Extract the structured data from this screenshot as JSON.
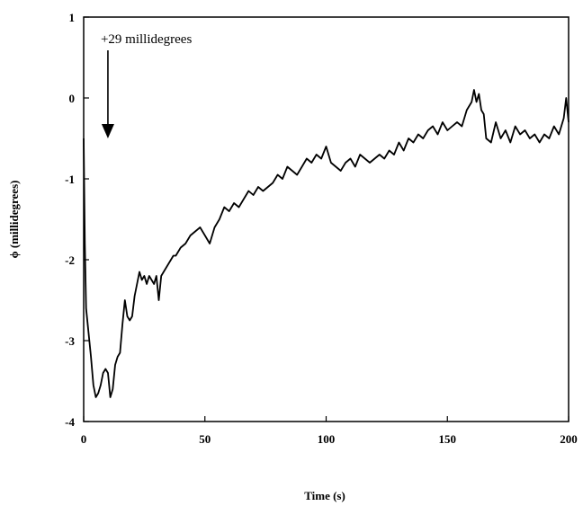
{
  "chart_data": {
    "type": "line",
    "title": "",
    "xlabel": "Time (s)",
    "ylabel": "ϕ (millidegrees)",
    "xlim": [
      0,
      200
    ],
    "ylim": [
      -4,
      1
    ],
    "x_ticks": [
      "0",
      "50",
      "100",
      "150",
      "200"
    ],
    "y_ticks": [
      "1",
      "0",
      "-1",
      "-2",
      "-3",
      "-4"
    ],
    "grid": false,
    "annotation": {
      "text": "+29 millidegrees",
      "x": 10,
      "y": -0.5
    },
    "series": [
      {
        "x": [
          0,
          0.5,
          1,
          2,
          3,
          4,
          5,
          6,
          7,
          8,
          9,
          10,
          11,
          12,
          13,
          14,
          15,
          16,
          17,
          18,
          19,
          20,
          21,
          22,
          23,
          24,
          25,
          26,
          27,
          28,
          29,
          30,
          31,
          32,
          33,
          34,
          35,
          36,
          37,
          38,
          39,
          40,
          42,
          44,
          46,
          48,
          50,
          52,
          54,
          56,
          58,
          60,
          62,
          64,
          66,
          68,
          70,
          72,
          74,
          76,
          78,
          80,
          82,
          84,
          86,
          88,
          90,
          92,
          94,
          96,
          98,
          100,
          102,
          104,
          106,
          108,
          110,
          112,
          114,
          116,
          118,
          120,
          122,
          124,
          126,
          128,
          130,
          132,
          134,
          136,
          138,
          140,
          142,
          144,
          146,
          148,
          150,
          152,
          154,
          156,
          158,
          160,
          161,
          162,
          163,
          164,
          165,
          166,
          168,
          170,
          172,
          174,
          176,
          178,
          180,
          182,
          184,
          186,
          188,
          190,
          192,
          194,
          196,
          198,
          199,
          200
        ],
        "y": [
          -0.5,
          -1.8,
          -2.6,
          -2.9,
          -3.2,
          -3.55,
          -3.7,
          -3.65,
          -3.55,
          -3.4,
          -3.35,
          -3.4,
          -3.7,
          -3.6,
          -3.3,
          -3.2,
          -3.15,
          -2.8,
          -2.5,
          -2.7,
          -2.75,
          -2.7,
          -2.45,
          -2.3,
          -2.15,
          -2.25,
          -2.2,
          -2.3,
          -2.2,
          -2.25,
          -2.3,
          -2.2,
          -2.5,
          -2.2,
          -2.15,
          -2.1,
          -2.05,
          -2.0,
          -1.95,
          -1.95,
          -1.9,
          -1.85,
          -1.8,
          -1.7,
          -1.65,
          -1.6,
          -1.7,
          -1.8,
          -1.6,
          -1.5,
          -1.35,
          -1.4,
          -1.3,
          -1.35,
          -1.25,
          -1.15,
          -1.2,
          -1.1,
          -1.15,
          -1.1,
          -1.05,
          -0.95,
          -1.0,
          -0.85,
          -0.9,
          -0.95,
          -0.85,
          -0.75,
          -0.8,
          -0.7,
          -0.75,
          -0.6,
          -0.8,
          -0.85,
          -0.9,
          -0.8,
          -0.75,
          -0.85,
          -0.7,
          -0.75,
          -0.8,
          -0.75,
          -0.7,
          -0.75,
          -0.65,
          -0.7,
          -0.55,
          -0.65,
          -0.5,
          -0.55,
          -0.45,
          -0.5,
          -0.4,
          -0.35,
          -0.45,
          -0.3,
          -0.4,
          -0.35,
          -0.3,
          -0.35,
          -0.15,
          -0.05,
          0.1,
          -0.05,
          0.05,
          -0.15,
          -0.2,
          -0.5,
          -0.55,
          -0.3,
          -0.5,
          -0.4,
          -0.55,
          -0.35,
          -0.45,
          -0.4,
          -0.5,
          -0.45,
          -0.55,
          -0.45,
          -0.5,
          -0.35,
          -0.45,
          -0.25,
          0.0,
          -0.3
        ]
      }
    ]
  }
}
